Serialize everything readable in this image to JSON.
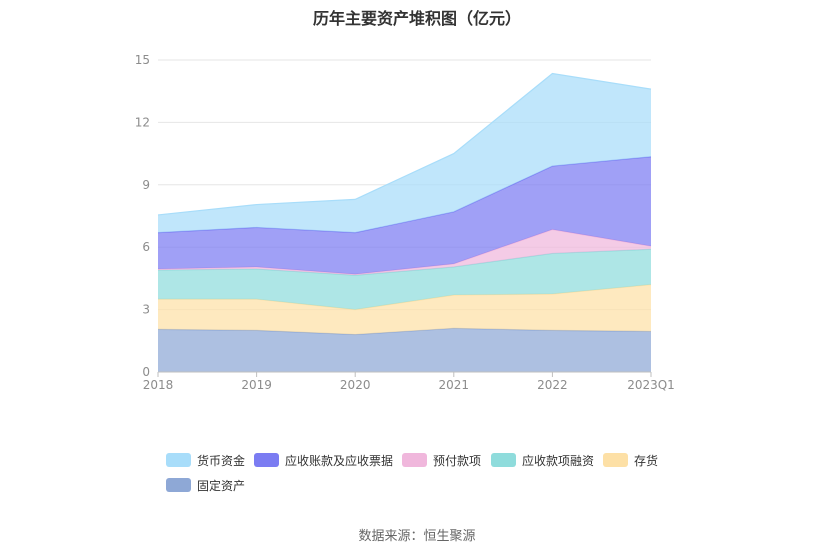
{
  "title": "历年主要资产堆积图（亿元）",
  "source": "数据来源：恒生聚源",
  "chart_data": {
    "type": "area",
    "stacked": true,
    "categories": [
      "2018",
      "2019",
      "2020",
      "2021",
      "2022",
      "2023Q1"
    ],
    "ylim": [
      0,
      15
    ],
    "yticks": [
      0,
      3,
      6,
      9,
      12,
      15
    ],
    "grid": true,
    "legend_position": "bottom",
    "series": [
      {
        "name": "固定资产",
        "color": "#8ea8d6",
        "values": [
          2.05,
          2.0,
          1.8,
          2.1,
          2.0,
          1.95
        ]
      },
      {
        "name": "存货",
        "color": "#fde0a6",
        "values": [
          1.45,
          1.5,
          1.2,
          1.6,
          1.75,
          2.25
        ]
      },
      {
        "name": "应收款项融资",
        "color": "#8fdcdc",
        "values": [
          1.4,
          1.45,
          1.65,
          1.35,
          1.95,
          1.7
        ]
      },
      {
        "name": "预付款项",
        "color": "#f0b7dc",
        "values": [
          0.05,
          0.1,
          0.05,
          0.15,
          1.15,
          0.15
        ]
      },
      {
        "name": "应收账款及应收票据",
        "color": "#7b7cf2",
        "values": [
          1.75,
          1.9,
          2.0,
          2.5,
          3.05,
          4.3
        ]
      },
      {
        "name": "货币资金",
        "color": "#a8ddfa",
        "values": [
          0.85,
          1.1,
          1.6,
          2.8,
          4.45,
          3.25
        ]
      }
    ]
  },
  "legend": [
    {
      "label": "货币资金",
      "color": "#a8ddfa"
    },
    {
      "label": "应收账款及应收票据",
      "color": "#7b7cf2"
    },
    {
      "label": "预付款项",
      "color": "#f0b7dc"
    },
    {
      "label": "应收款项融资",
      "color": "#8fdcdc"
    },
    {
      "label": "存货",
      "color": "#fde0a6"
    },
    {
      "label": "固定资产",
      "color": "#8ea8d6"
    }
  ]
}
